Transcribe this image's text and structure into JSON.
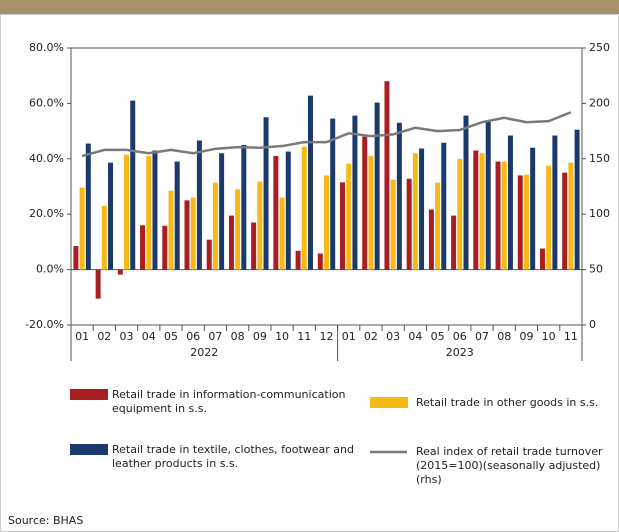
{
  "chart_data": {
    "type": "bar",
    "source": "Source: BHAS",
    "categories": [
      "01",
      "02",
      "03",
      "04",
      "05",
      "06",
      "07",
      "08",
      "09",
      "10",
      "11",
      "12",
      "01",
      "02",
      "03",
      "04",
      "05",
      "06",
      "07",
      "08",
      "09",
      "10",
      "11"
    ],
    "x_groups": [
      "2022",
      "2023"
    ],
    "series": [
      {
        "name": "Retail trade in information-communication equipment in s.s.",
        "color": "#a81e22",
        "values": [
          8.5,
          -10.5,
          -1.8,
          16,
          15.8,
          25,
          10.8,
          19.5,
          17,
          41,
          6.8,
          5.8,
          31.5,
          48,
          68,
          32.8,
          21.7,
          19.5,
          43,
          39,
          34,
          7.6,
          35
        ]
      },
      {
        "name": "Retail trade in other goods in s.s.",
        "color": "#f7b916",
        "values": [
          29.6,
          23,
          41.5,
          41,
          28.5,
          26,
          31.4,
          29,
          31.8,
          26,
          44.4,
          34,
          38.3,
          41,
          32.5,
          42,
          31.4,
          40,
          42,
          39,
          34.3,
          37.5,
          38.6
        ]
      },
      {
        "name": "Retail trade in textile, clothes, footwear and leather products in s.s.",
        "color": "#1b3a6b",
        "values": [
          45.5,
          38.6,
          61,
          43,
          39,
          46.6,
          42,
          45,
          55,
          42.6,
          62.8,
          54.5,
          55.6,
          60.3,
          53,
          43.7,
          45.8,
          55.6,
          53.4,
          48.4,
          44,
          48.4,
          50.5
        ]
      },
      {
        "name": "Real index of retail trade turnover (2015=100)(seasonally adjusted)(rhs)",
        "color": "#7a7a7a",
        "type": "line",
        "axis": "y2",
        "values": [
          152.5,
          158,
          158,
          155,
          158,
          155,
          159,
          160.5,
          160,
          161.5,
          165,
          165,
          173,
          170.5,
          172,
          178,
          175,
          176,
          183,
          187,
          183,
          184,
          192
        ]
      }
    ],
    "ylim": [
      -20,
      80
    ],
    "yticks": [
      {
        "value": -20,
        "label": "-20.0%"
      },
      {
        "value": 0,
        "label": "0.0%"
      },
      {
        "value": 20,
        "label": "20.0%"
      },
      {
        "value": 40,
        "label": "40.0%"
      },
      {
        "value": 60,
        "label": "60.0%"
      },
      {
        "value": 80,
        "label": "80.0%"
      }
    ],
    "y2lim": [
      0,
      250
    ],
    "y2ticks": [
      0,
      50,
      100,
      150,
      200,
      250
    ],
    "grid": false
  }
}
